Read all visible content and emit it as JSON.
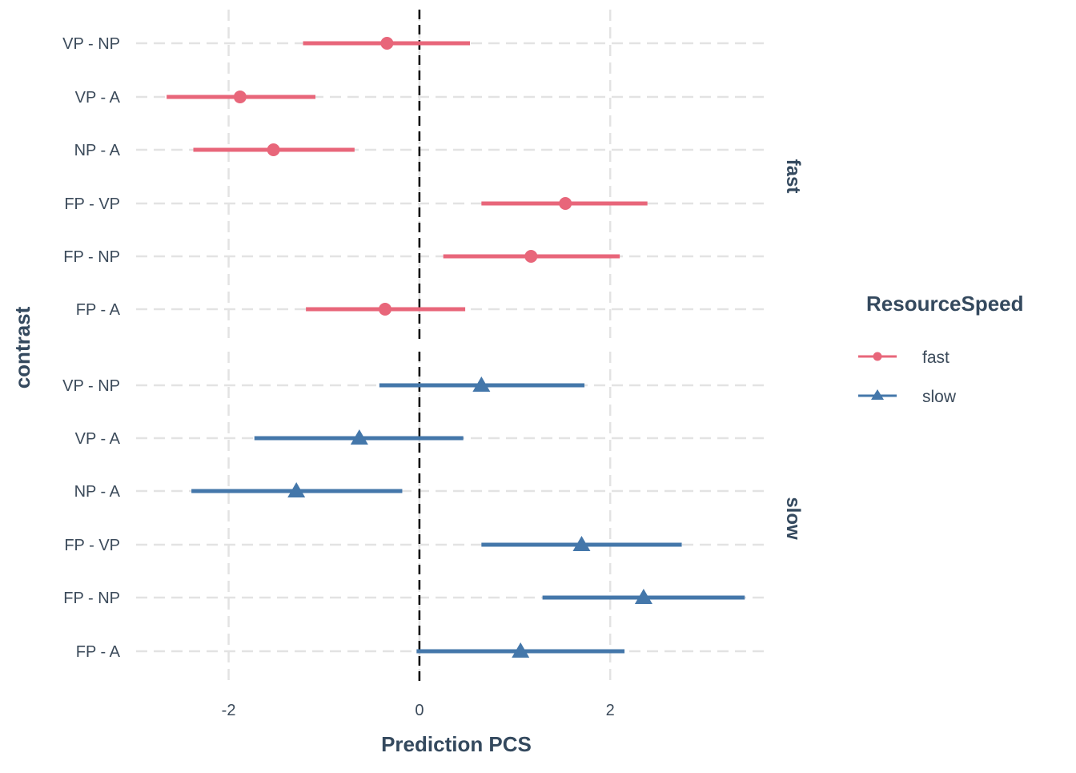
{
  "chart_data": {
    "type": "scatter",
    "subtype": "forest-plot with interval bars, faceted by ResourceSpeed",
    "title": "",
    "xlabel": "Prediction PCS",
    "ylabel": "contrast",
    "xlim": [
      -2.97,
      3.66
    ],
    "x_ticks": [
      -2,
      0,
      2
    ],
    "x_tick_labels": [
      "-2",
      "0",
      "2"
    ],
    "reference_line": 0,
    "grid": true,
    "categories": [
      "FP - A",
      "FP - NP",
      "FP - VP",
      "NP - A",
      "VP - A",
      "VP - NP"
    ],
    "legend": {
      "title": "ResourceSpeed",
      "position": "right",
      "entries": [
        "fast",
        "slow"
      ]
    },
    "series": [
      {
        "name": "fast",
        "facet_label": "fast",
        "color": "#E8667A",
        "marker": "circle",
        "points": [
          {
            "contrast": "VP - NP",
            "estimate": -0.34,
            "lower": -1.22,
            "upper": 0.53
          },
          {
            "contrast": "VP - A",
            "estimate": -1.88,
            "lower": -2.65,
            "upper": -1.09
          },
          {
            "contrast": "NP - A",
            "estimate": -1.53,
            "lower": -2.37,
            "upper": -0.68
          },
          {
            "contrast": "FP - VP",
            "estimate": 1.53,
            "lower": 0.65,
            "upper": 2.39
          },
          {
            "contrast": "FP - NP",
            "estimate": 1.17,
            "lower": 0.25,
            "upper": 2.1
          },
          {
            "contrast": "FP - A",
            "estimate": -0.36,
            "lower": -1.19,
            "upper": 0.48
          }
        ]
      },
      {
        "name": "slow",
        "facet_label": "slow",
        "color": "#4477AA",
        "marker": "triangle",
        "points": [
          {
            "contrast": "VP - NP",
            "estimate": 0.65,
            "lower": -0.42,
            "upper": 1.73
          },
          {
            "contrast": "VP - A",
            "estimate": -0.63,
            "lower": -1.73,
            "upper": 0.46
          },
          {
            "contrast": "NP - A",
            "estimate": -1.29,
            "lower": -2.39,
            "upper": -0.18
          },
          {
            "contrast": "FP - VP",
            "estimate": 1.7,
            "lower": 0.65,
            "upper": 2.75
          },
          {
            "contrast": "FP - NP",
            "estimate": 2.35,
            "lower": 1.29,
            "upper": 3.41
          },
          {
            "contrast": "FP - A",
            "estimate": 1.06,
            "lower": -0.03,
            "upper": 2.15
          }
        ]
      }
    ]
  }
}
